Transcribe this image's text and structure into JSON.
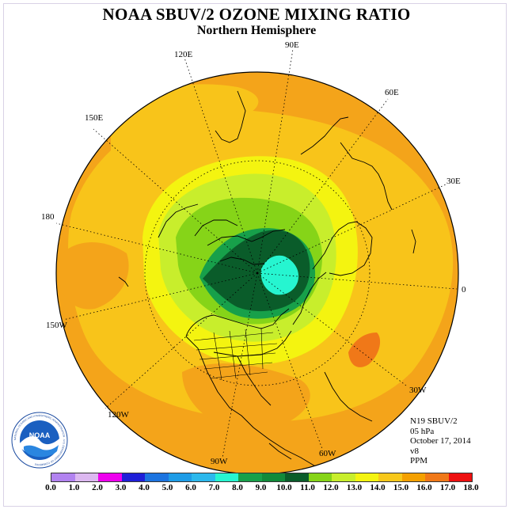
{
  "title": "NOAA SBUV/2 OZONE MIXING RATIO",
  "subtitle": "Northern Hemisphere",
  "longitude_labels": {
    "e120": "120E",
    "e90": "90E",
    "e60": "60E",
    "e30": "30E",
    "e180": "180",
    "e150": "150E",
    "zero": "0",
    "w150": "150W",
    "w120": "120W",
    "w90": "90W",
    "w60": "60W",
    "w30": "30W"
  },
  "info": {
    "instrument": "N19 SBUV/2",
    "level": "05 hPa",
    "date": "October 17, 2014",
    "version": "v8",
    "units": "PPM"
  },
  "logo": {
    "text": "NOAA",
    "ring_text": "NATIONAL OCEANIC AND ATMOSPHERIC ADMINISTRATION · U.S. DEPARTMENT OF COMMERCE"
  },
  "colorbar": {
    "ticks": [
      "0.0",
      "1.0",
      "2.0",
      "3.0",
      "4.0",
      "5.0",
      "6.0",
      "7.0",
      "8.0",
      "9.0",
      "10.0",
      "11.0",
      "12.0",
      "13.0",
      "14.0",
      "15.0",
      "16.0",
      "17.0",
      "18.0"
    ],
    "colors": [
      "#b283f0",
      "#dcb8f0",
      "#ee00ee",
      "#1f1fd8",
      "#1c74e0",
      "#1e9ce6",
      "#2cb8ec",
      "#26f5d0",
      "#17a04a",
      "#118a3a",
      "#0a5c2a",
      "#86d418",
      "#c8ee2c",
      "#f4f410",
      "#f8c81a",
      "#f4a000",
      "#f07818",
      "#ee1010",
      "#8a5a36"
    ]
  },
  "map_colors": {
    "outer": "#f4a41a",
    "band_light_orange": "#f8c41a",
    "band_yellow": "#f4f410",
    "band_yellowgreen": "#c8ee2c",
    "band_green": "#86d418",
    "core_green": "#17a04a",
    "core_darkgreen": "#0a5c2a",
    "core_cyan": "#26f5d0",
    "patch_darkorange": "#f07818"
  }
}
